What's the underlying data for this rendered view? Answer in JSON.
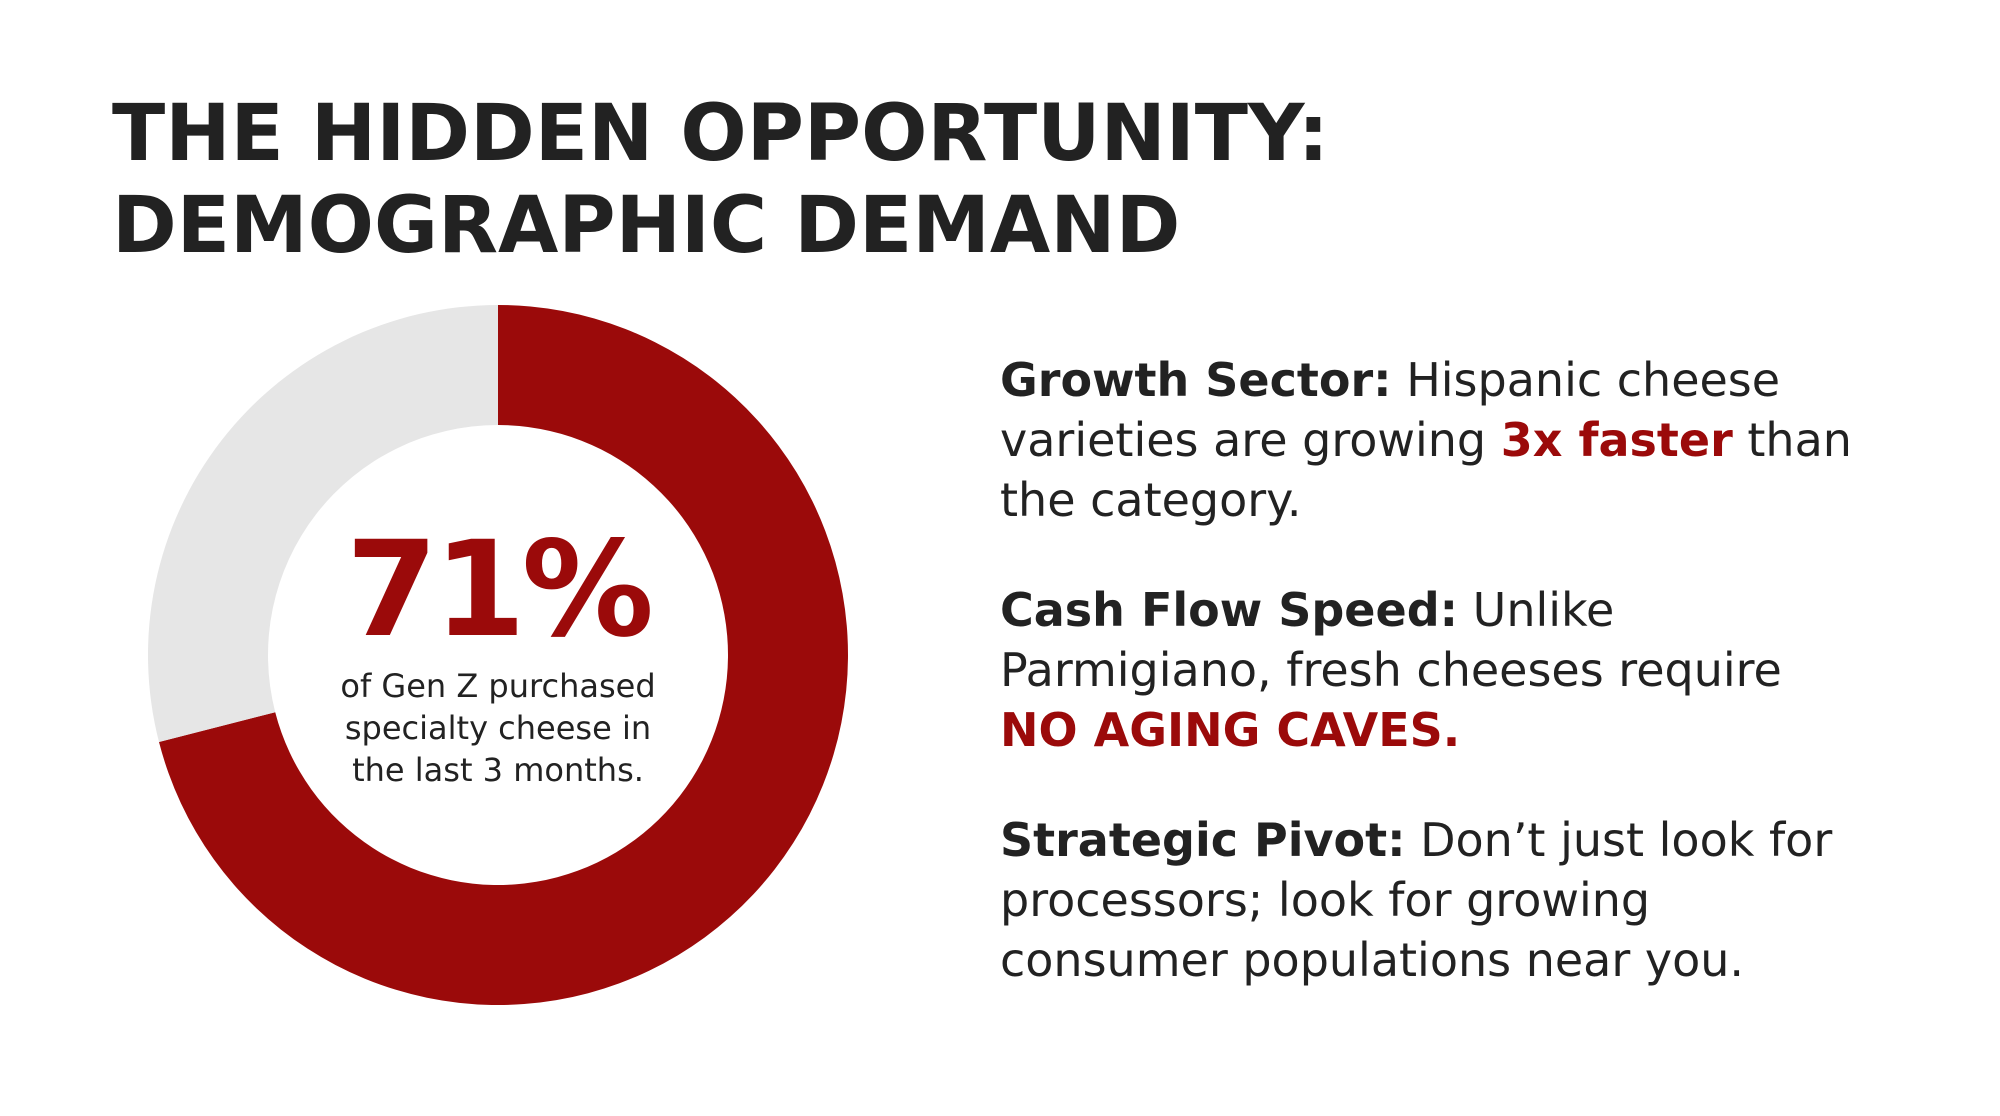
{
  "title": {
    "line1": "THE HIDDEN OPPORTUNITY:",
    "line2": "DEMOGRAPHIC DEMAND"
  },
  "chart_data": {
    "type": "pie",
    "style": "donut",
    "values": [
      71,
      29
    ],
    "colors": [
      "#9b0a0a",
      "#e6e6e6"
    ],
    "center_value": "71%",
    "center_caption": [
      "of Gen Z purchased",
      "specialty cheese in",
      "the last 3 months."
    ]
  },
  "points": [
    {
      "label": "Growth Sector:",
      "lines": [
        {
          "text": "Hispanic cheese",
          "hl": "",
          "after": ""
        },
        {
          "text": "varieties are growing ",
          "hl": "3x faster",
          "after": " than"
        },
        {
          "text": "the category.",
          "hl": "",
          "after": ""
        }
      ]
    },
    {
      "label": "Cash Flow Speed:",
      "lines": [
        {
          "text": "Unlike",
          "hl": "",
          "after": ""
        },
        {
          "text": "Parmigiano, fresh cheeses require",
          "hl": "",
          "after": ""
        },
        {
          "text": "",
          "hl": "NO AGING CAVES.",
          "after": ""
        }
      ]
    },
    {
      "label": "Strategic Pivot:",
      "lines": [
        {
          "text": "Don’t just look for",
          "hl": "",
          "after": ""
        },
        {
          "text": "processors; look for growing",
          "hl": "",
          "after": ""
        },
        {
          "text": "consumer populations near you.",
          "hl": "",
          "after": ""
        }
      ]
    }
  ]
}
